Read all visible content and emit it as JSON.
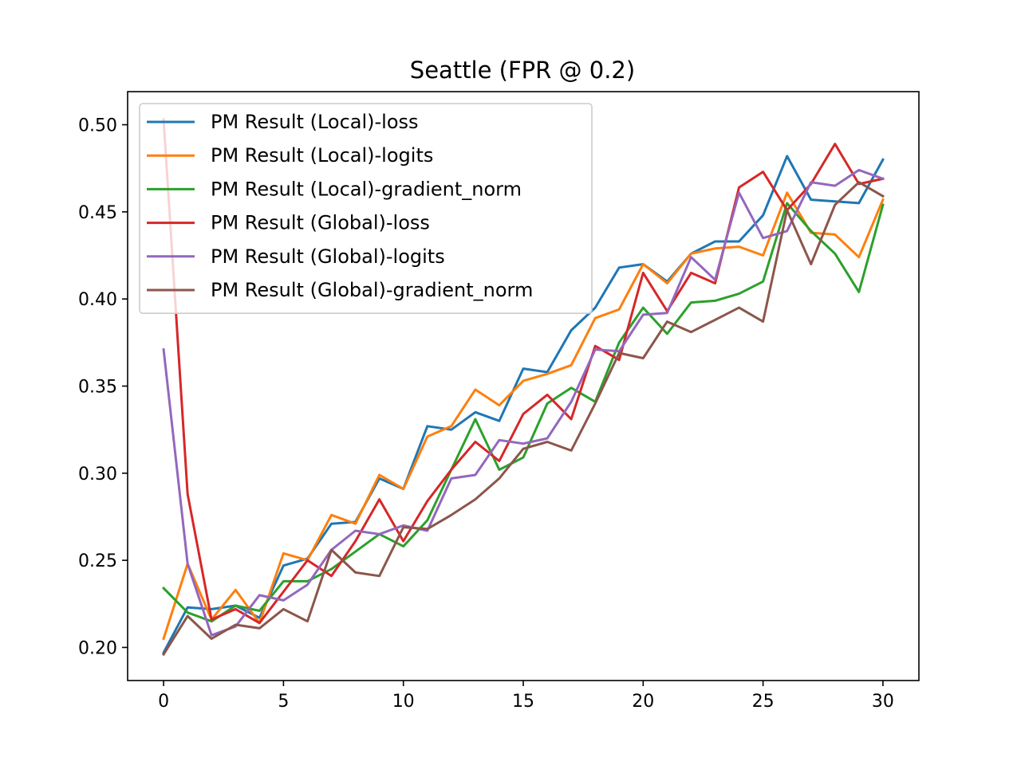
{
  "chart_data": {
    "type": "line",
    "title": "Seattle (FPR @ 0.2)",
    "xlabel": "",
    "ylabel": "",
    "xlim": [
      -1.5,
      31.5
    ],
    "ylim": [
      0.181,
      0.519
    ],
    "xticks": [
      0,
      5,
      10,
      15,
      20,
      25,
      30
    ],
    "xtick_labels": [
      "0",
      "5",
      "10",
      "15",
      "20",
      "25",
      "30"
    ],
    "yticks": [
      0.2,
      0.25,
      0.3,
      0.35,
      0.4,
      0.45,
      0.5
    ],
    "ytick_labels": [
      "0.20",
      "0.25",
      "0.30",
      "0.35",
      "0.40",
      "0.45",
      "0.50"
    ],
    "grid": false,
    "legend_position": "upper-left",
    "x": [
      0,
      1,
      2,
      3,
      4,
      5,
      6,
      7,
      8,
      9,
      10,
      11,
      12,
      13,
      14,
      15,
      16,
      17,
      18,
      19,
      20,
      21,
      22,
      23,
      24,
      25,
      26,
      27,
      28,
      29,
      30
    ],
    "series": [
      {
        "name": "PM Result (Local)-loss",
        "color": "#1f77b4",
        "values": [
          0.197,
          0.223,
          0.222,
          0.224,
          0.217,
          0.247,
          0.251,
          0.271,
          0.272,
          0.297,
          0.291,
          0.327,
          0.325,
          0.335,
          0.33,
          0.36,
          0.358,
          0.382,
          0.395,
          0.418,
          0.42,
          0.41,
          0.426,
          0.433,
          0.433,
          0.448,
          0.482,
          0.457,
          0.456,
          0.455,
          0.48
        ]
      },
      {
        "name": "PM Result (Local)-logits",
        "color": "#ff7f0e",
        "values": [
          0.205,
          0.248,
          0.216,
          0.233,
          0.214,
          0.254,
          0.25,
          0.276,
          0.271,
          0.299,
          0.291,
          0.321,
          0.327,
          0.348,
          0.339,
          0.353,
          0.357,
          0.362,
          0.389,
          0.394,
          0.42,
          0.409,
          0.426,
          0.429,
          0.43,
          0.425,
          0.461,
          0.438,
          0.437,
          0.424,
          0.457
        ]
      },
      {
        "name": "PM Result (Local)-gradient_norm",
        "color": "#2ca02c",
        "values": [
          0.234,
          0.22,
          0.215,
          0.224,
          0.221,
          0.238,
          0.238,
          0.245,
          0.255,
          0.265,
          0.258,
          0.273,
          0.302,
          0.331,
          0.302,
          0.309,
          0.34,
          0.349,
          0.341,
          0.375,
          0.395,
          0.38,
          0.398,
          0.399,
          0.403,
          0.41,
          0.455,
          0.439,
          0.426,
          0.404,
          0.454
        ]
      },
      {
        "name": "PM Result (Global)-loss",
        "color": "#d62728",
        "values": [
          0.503,
          0.288,
          0.216,
          0.222,
          0.214,
          0.232,
          0.25,
          0.241,
          0.261,
          0.285,
          0.261,
          0.284,
          0.302,
          0.318,
          0.307,
          0.334,
          0.345,
          0.331,
          0.373,
          0.365,
          0.415,
          0.393,
          0.415,
          0.409,
          0.464,
          0.473,
          0.451,
          0.466,
          0.489,
          0.466,
          0.469
        ]
      },
      {
        "name": "PM Result (Global)-logits",
        "color": "#9467bd",
        "values": [
          0.371,
          0.248,
          0.207,
          0.212,
          0.23,
          0.227,
          0.236,
          0.256,
          0.267,
          0.265,
          0.27,
          0.267,
          0.297,
          0.299,
          0.319,
          0.317,
          0.32,
          0.341,
          0.371,
          0.37,
          0.391,
          0.392,
          0.424,
          0.411,
          0.461,
          0.435,
          0.439,
          0.467,
          0.465,
          0.474,
          0.469
        ]
      },
      {
        "name": "PM Result (Global)-gradient_norm",
        "color": "#8c564b",
        "values": [
          0.196,
          0.218,
          0.205,
          0.213,
          0.211,
          0.222,
          0.215,
          0.256,
          0.243,
          0.241,
          0.269,
          0.268,
          0.276,
          0.285,
          0.297,
          0.314,
          0.318,
          0.313,
          0.34,
          0.369,
          0.366,
          0.387,
          0.381,
          0.388,
          0.395,
          0.387,
          0.451,
          0.42,
          0.454,
          0.467,
          0.459
        ]
      }
    ]
  }
}
